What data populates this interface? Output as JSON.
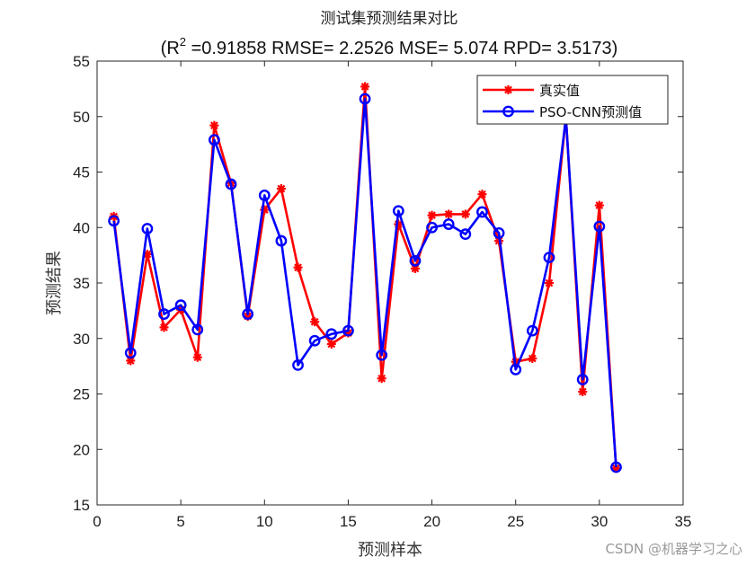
{
  "chart_data": {
    "type": "line",
    "title": "测试集预测结果对比",
    "subtitle": {
      "before_sup": "(R",
      "sup": "2",
      "after_sup": " =0.91858 RMSE= 2.2526 MSE= 5.074 RPD= 3.5173)"
    },
    "xlabel": "预测样本",
    "ylabel": "预测结果",
    "xlim": [
      0,
      35
    ],
    "ylim": [
      15,
      55
    ],
    "xticks": [
      0,
      5,
      10,
      15,
      20,
      25,
      30,
      35
    ],
    "yticks": [
      15,
      20,
      25,
      30,
      35,
      40,
      45,
      50,
      55
    ],
    "grid": false,
    "legend_position": "top-right",
    "x": [
      1,
      2,
      3,
      4,
      5,
      6,
      7,
      8,
      9,
      10,
      11,
      12,
      13,
      14,
      15,
      16,
      17,
      18,
      19,
      20,
      21,
      22,
      23,
      24,
      25,
      26,
      27,
      28,
      29,
      30,
      31
    ],
    "series": [
      {
        "name": "真实值",
        "color": "#ff0000",
        "marker": "asterisk",
        "values": [
          41.0,
          28.0,
          37.6,
          31.0,
          32.6,
          28.3,
          49.2,
          44.0,
          32.0,
          41.6,
          43.5,
          36.4,
          31.5,
          29.5,
          30.5,
          52.7,
          26.4,
          40.3,
          36.3,
          41.1,
          41.2,
          41.2,
          43.0,
          38.8,
          27.9,
          28.2,
          35.0,
          50.0,
          25.2,
          42.0,
          18.3
        ]
      },
      {
        "name": "PSO-CNN预测值",
        "color": "#0000ff",
        "marker": "circle",
        "values": [
          40.6,
          28.7,
          39.9,
          32.2,
          33.0,
          30.8,
          47.9,
          43.9,
          32.2,
          42.9,
          38.8,
          27.6,
          29.8,
          30.4,
          30.7,
          51.6,
          28.5,
          41.5,
          37.0,
          40.0,
          40.3,
          39.4,
          41.4,
          39.5,
          27.2,
          30.7,
          37.3,
          49.9,
          26.3,
          40.1,
          18.4
        ]
      }
    ]
  },
  "watermark": "CSDN @机器学习之心"
}
